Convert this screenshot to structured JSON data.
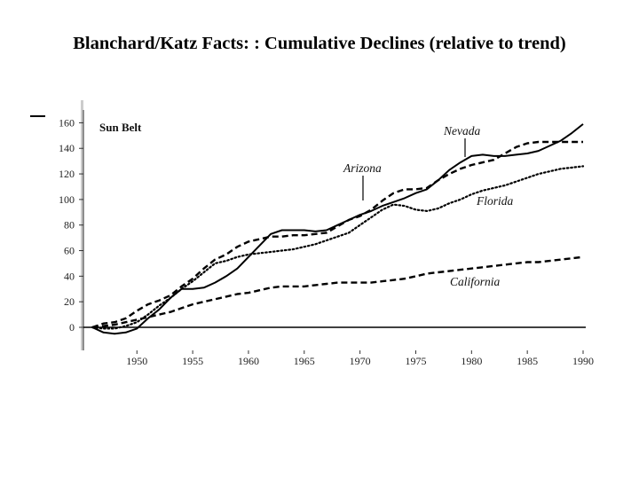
{
  "slide": {
    "title": "Blanchard/Katz Facts: :  Cumulative Declines (relative to trend)"
  },
  "chart_data": {
    "type": "line",
    "title": "",
    "panel_label": "Sun Belt",
    "xlabel": "",
    "ylabel": "",
    "xlim": [
      1946,
      1990
    ],
    "ylim": [
      -10,
      165
    ],
    "x_ticks": [
      1950,
      1955,
      1960,
      1965,
      1970,
      1975,
      1980,
      1985,
      1990
    ],
    "y_ticks": [
      0,
      20,
      40,
      60,
      80,
      100,
      120,
      140,
      160
    ],
    "grid": false,
    "legend": "inline labels",
    "series": [
      {
        "name": "Nevada",
        "style": "solid",
        "x": [
          1946,
          1947,
          1948,
          1949,
          1950,
          1951,
          1952,
          1953,
          1954,
          1955,
          1956,
          1957,
          1958,
          1959,
          1960,
          1961,
          1962,
          1963,
          1964,
          1965,
          1966,
          1967,
          1968,
          1969,
          1970,
          1971,
          1972,
          1973,
          1974,
          1975,
          1976,
          1977,
          1978,
          1979,
          1980,
          1981,
          1982,
          1983,
          1984,
          1985,
          1986,
          1987,
          1988,
          1989,
          1990
        ],
        "y": [
          0,
          -4,
          -5,
          -4,
          -1,
          7,
          14,
          23,
          30,
          30,
          31,
          35,
          40,
          46,
          55,
          64,
          73,
          76,
          76,
          76,
          75,
          76,
          80,
          84,
          88,
          91,
          95,
          98,
          101,
          105,
          108,
          115,
          123,
          129,
          134,
          135,
          134,
          134,
          135,
          136,
          138,
          142,
          146,
          152,
          159
        ]
      },
      {
        "name": "Arizona",
        "style": "dashed",
        "x": [
          1946,
          1947,
          1948,
          1949,
          1950,
          1951,
          1952,
          1953,
          1954,
          1955,
          1956,
          1957,
          1958,
          1959,
          1960,
          1961,
          1962,
          1963,
          1964,
          1965,
          1966,
          1967,
          1968,
          1969,
          1970,
          1971,
          1972,
          1973,
          1974,
          1975,
          1976,
          1977,
          1978,
          1979,
          1980,
          1981,
          1982,
          1983,
          1984,
          1985,
          1986,
          1987,
          1988,
          1989,
          1990
        ],
        "y": [
          0,
          3,
          4,
          7,
          13,
          18,
          21,
          25,
          32,
          38,
          46,
          53,
          57,
          63,
          67,
          69,
          71,
          71,
          72,
          72,
          73,
          74,
          79,
          84,
          87,
          92,
          99,
          105,
          108,
          108,
          109,
          115,
          120,
          124,
          127,
          129,
          131,
          136,
          141,
          144,
          145,
          145,
          145,
          145,
          145
        ]
      },
      {
        "name": "Florida",
        "style": "dotted",
        "x": [
          1946,
          1947,
          1948,
          1949,
          1950,
          1951,
          1952,
          1953,
          1954,
          1955,
          1956,
          1957,
          1958,
          1959,
          1960,
          1961,
          1962,
          1963,
          1964,
          1965,
          1966,
          1967,
          1968,
          1969,
          1970,
          1971,
          1972,
          1973,
          1974,
          1975,
          1976,
          1977,
          1978,
          1979,
          1980,
          1981,
          1982,
          1983,
          1984,
          1985,
          1986,
          1987,
          1988,
          1989,
          1990
        ],
        "y": [
          0,
          -1,
          -1,
          1,
          4,
          10,
          17,
          23,
          30,
          36,
          43,
          50,
          52,
          55,
          57,
          58,
          59,
          60,
          61,
          63,
          65,
          68,
          71,
          74,
          80,
          86,
          92,
          96,
          95,
          92,
          91,
          93,
          97,
          100,
          104,
          107,
          109,
          111,
          114,
          117,
          120,
          122,
          124,
          125,
          126
        ]
      },
      {
        "name": "California",
        "style": "dashed",
        "x": [
          1946,
          1947,
          1948,
          1949,
          1950,
          1951,
          1952,
          1953,
          1954,
          1955,
          1956,
          1957,
          1958,
          1959,
          1960,
          1961,
          1962,
          1963,
          1964,
          1965,
          1966,
          1967,
          1968,
          1969,
          1970,
          1971,
          1972,
          1973,
          1974,
          1975,
          1976,
          1977,
          1978,
          1979,
          1980,
          1981,
          1982,
          1983,
          1984,
          1985,
          1986,
          1987,
          1988,
          1989,
          1990
        ],
        "y": [
          0,
          1,
          2,
          4,
          6,
          8,
          10,
          12,
          15,
          18,
          20,
          22,
          24,
          26,
          27,
          29,
          31,
          32,
          32,
          32,
          33,
          34,
          35,
          35,
          35,
          35,
          36,
          37,
          38,
          40,
          42,
          43,
          44,
          45,
          46,
          47,
          48,
          49,
          50,
          51,
          51,
          52,
          53,
          54,
          55
        ]
      }
    ]
  }
}
